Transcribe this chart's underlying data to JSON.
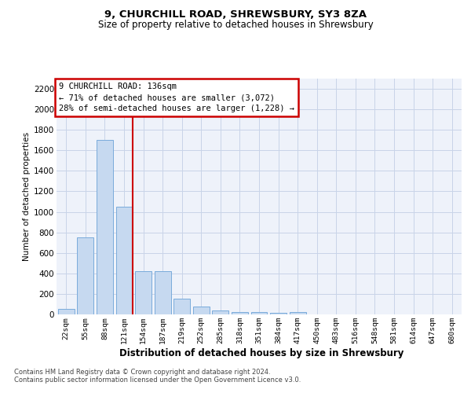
{
  "title1": "9, CHURCHILL ROAD, SHREWSBURY, SY3 8ZA",
  "title2": "Size of property relative to detached houses in Shrewsbury",
  "xlabel": "Distribution of detached houses by size in Shrewsbury",
  "ylabel": "Number of detached properties",
  "categories": [
    "22sqm",
    "55sqm",
    "88sqm",
    "121sqm",
    "154sqm",
    "187sqm",
    "219sqm",
    "252sqm",
    "285sqm",
    "318sqm",
    "351sqm",
    "384sqm",
    "417sqm",
    "450sqm",
    "483sqm",
    "516sqm",
    "548sqm",
    "581sqm",
    "614sqm",
    "647sqm",
    "680sqm"
  ],
  "values": [
    50,
    750,
    1700,
    1050,
    420,
    420,
    150,
    80,
    35,
    25,
    20,
    15,
    20,
    0,
    0,
    0,
    0,
    0,
    0,
    0,
    0
  ],
  "bar_color": "#c6d9f0",
  "bar_edge_color": "#7aabdb",
  "grid_color": "#c8d4e8",
  "background_color": "#eef2fa",
  "vline_color": "#cc0000",
  "annotation_text": "9 CHURCHILL ROAD: 136sqm\n← 71% of detached houses are smaller (3,072)\n28% of semi-detached houses are larger (1,228) →",
  "annotation_box_color": "#cc0000",
  "ylim": [
    0,
    2300
  ],
  "yticks": [
    0,
    200,
    400,
    600,
    800,
    1000,
    1200,
    1400,
    1600,
    1800,
    2000,
    2200
  ],
  "footer1": "Contains HM Land Registry data © Crown copyright and database right 2024.",
  "footer2": "Contains public sector information licensed under the Open Government Licence v3.0."
}
